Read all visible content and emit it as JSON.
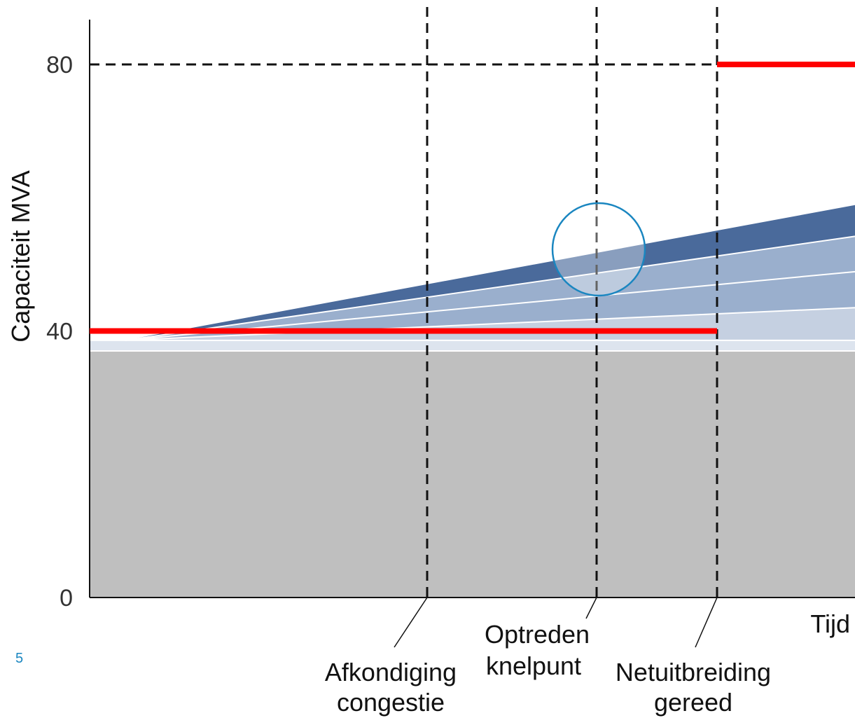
{
  "chart_data": {
    "type": "area",
    "xlabel": "Tijd",
    "ylabel": "Capaciteit MVA",
    "ylim": [
      0,
      90
    ],
    "yticks": [
      0,
      40,
      80
    ],
    "grid": false,
    "base_level": 37,
    "base_band_top": 38.6,
    "scenario_fan": {
      "start_value": 38.6,
      "end_values": [
        43.5,
        48.9,
        54.2,
        58.9
      ]
    },
    "capacity_line": [
      {
        "segment": "before",
        "value": 40
      },
      {
        "segment": "after",
        "value": 80
      }
    ],
    "events": [
      {
        "id": "afkondiging",
        "label_lines": [
          "Afkondiging",
          "congestie"
        ]
      },
      {
        "id": "knelpunt",
        "label_lines": [
          "Optreden",
          "knelpunt"
        ]
      },
      {
        "id": "netuitbreiding",
        "label_lines": [
          "Netuitbreiding",
          "gereed"
        ]
      }
    ],
    "colors": {
      "base": "#bfbfbf",
      "band_light": "#c5d0e1",
      "band_mid": "#9aafcd",
      "band_dark": "#4a6a9b",
      "capacity": "#ff0000",
      "highlight": "#1a86c0",
      "dashed": "#111111"
    }
  },
  "page_number": "5"
}
